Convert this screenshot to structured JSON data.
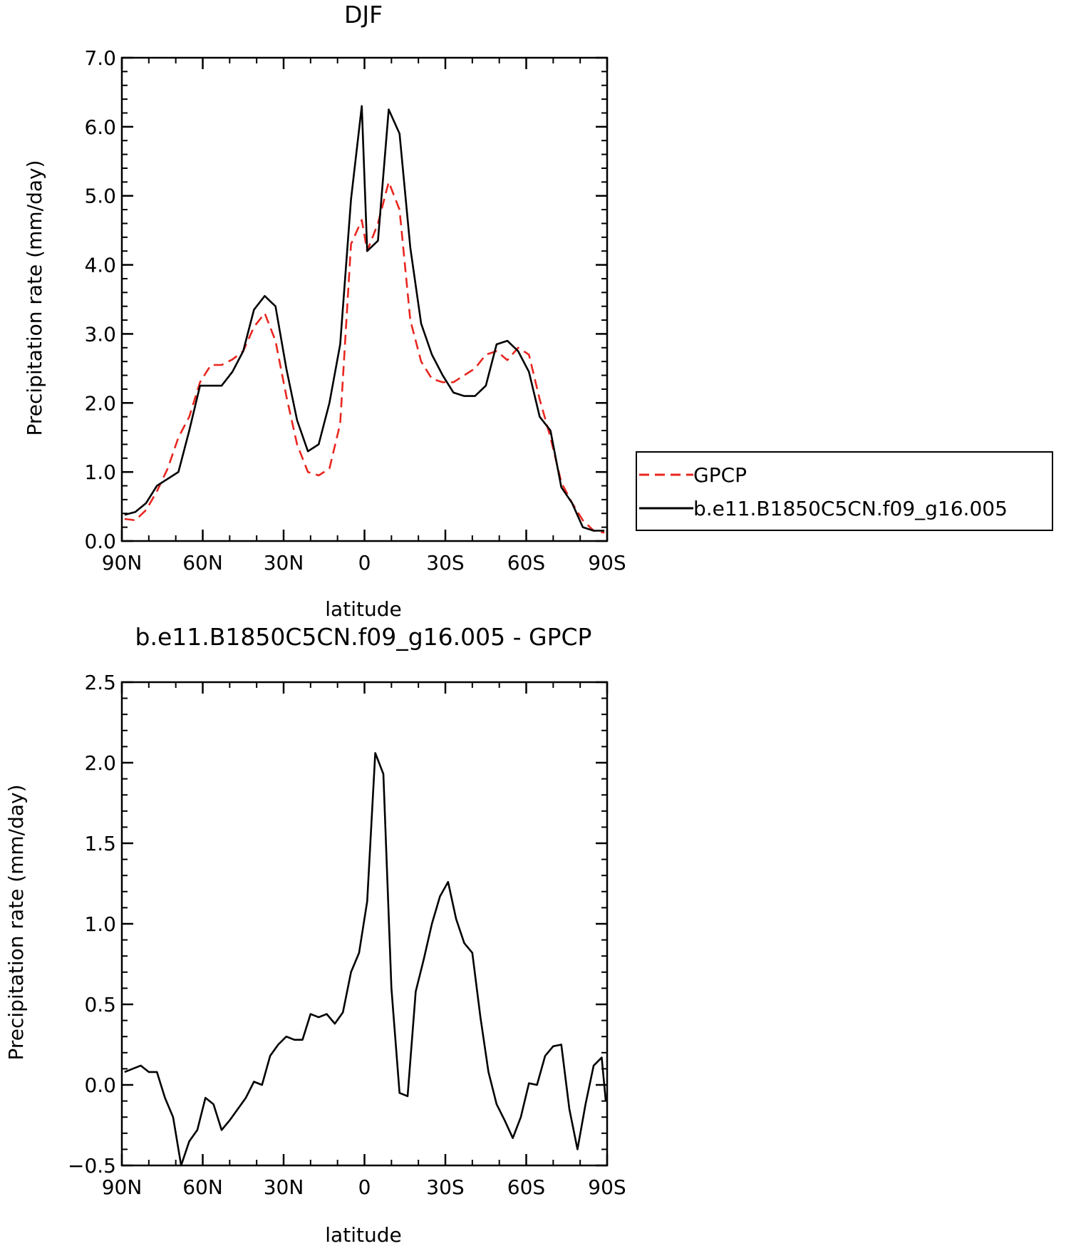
{
  "chart_data": [
    {
      "type": "line",
      "title": "DJF",
      "xlabel": "latitude",
      "ylabel": "Precipitation rate (mm/day)",
      "xlim": [
        90,
        -90
      ],
      "ylim": [
        0.0,
        7.0
      ],
      "x_ticks": [
        90,
        60,
        30,
        0,
        -30,
        -60,
        -90
      ],
      "x_tick_labels": [
        "90N",
        "60N",
        "30N",
        "0",
        "30S",
        "60S",
        "90S"
      ],
      "y_ticks": [
        0.0,
        1.0,
        2.0,
        3.0,
        4.0,
        5.0,
        6.0,
        7.0
      ],
      "y_tick_labels": [
        "0.0",
        "1.0",
        "2.0",
        "3.0",
        "4.0",
        "5.0",
        "6.0",
        "7.0"
      ],
      "grid": false,
      "legend_position": "right",
      "x": [
        89,
        85,
        81,
        77,
        73,
        69,
        65,
        61,
        57,
        53,
        49,
        45,
        41,
        37,
        33,
        29,
        25,
        21,
        17,
        13,
        9,
        5,
        1,
        -1,
        -5,
        -9,
        -13,
        -17,
        -21,
        -25,
        -29,
        -33,
        -37,
        -41,
        -45,
        -49,
        -53,
        -57,
        -61,
        -65,
        -69,
        -73,
        -77,
        -81,
        -85,
        -89
      ],
      "series": [
        {
          "name": "GPCP",
          "color": "#e8261f",
          "dash": true,
          "values": [
            0.32,
            0.3,
            0.45,
            0.72,
            1.05,
            1.5,
            1.8,
            2.3,
            2.55,
            2.55,
            2.63,
            2.75,
            3.1,
            3.3,
            2.9,
            2.1,
            1.4,
            1.0,
            0.95,
            1.05,
            1.7,
            4.3,
            4.65,
            4.2,
            4.6,
            5.2,
            4.8,
            3.2,
            2.6,
            2.35,
            2.3,
            2.3,
            2.4,
            2.5,
            2.7,
            2.75,
            2.62,
            2.8,
            2.7,
            2.05,
            1.5,
            0.85,
            0.55,
            0.3,
            0.15,
            0.12
          ]
        },
        {
          "name": "b.e11.B1850C5CN.f09_g16.005",
          "color": "#000000",
          "dash": false,
          "values": [
            0.38,
            0.42,
            0.55,
            0.8,
            0.9,
            1.0,
            1.6,
            2.25,
            2.25,
            2.25,
            2.45,
            2.75,
            3.35,
            3.55,
            3.4,
            2.5,
            1.75,
            1.3,
            1.4,
            2.0,
            2.85,
            4.95,
            6.3,
            4.2,
            4.35,
            6.25,
            5.9,
            4.25,
            3.15,
            2.7,
            2.4,
            2.15,
            2.1,
            2.1,
            2.25,
            2.85,
            2.9,
            2.75,
            2.45,
            1.8,
            1.6,
            0.78,
            0.55,
            0.2,
            0.15,
            0.15
          ]
        }
      ],
      "legend": [
        {
          "name": "GPCP",
          "color": "#e8261f",
          "dash": true
        },
        {
          "name": "b.e11.B1850C5CN.f09_g16.005",
          "color": "#000000",
          "dash": false
        }
      ]
    },
    {
      "type": "line",
      "title": "b.e11.B1850C5CN.f09_g16.005 - GPCP",
      "xlabel": "latitude",
      "ylabel": "Precipitation rate (mm/day)",
      "xlim": [
        90,
        -90
      ],
      "ylim": [
        -0.5,
        2.5
      ],
      "x_ticks": [
        90,
        60,
        30,
        0,
        -30,
        -60,
        -90
      ],
      "x_tick_labels": [
        "90N",
        "60N",
        "30N",
        "0",
        "30S",
        "60S",
        "90S"
      ],
      "y_ticks": [
        -0.5,
        0.0,
        0.5,
        1.0,
        1.5,
        2.0,
        2.5
      ],
      "y_tick_labels": [
        "−0.5",
        "0.0",
        "0.5",
        "1.0",
        "1.5",
        "2.0",
        "2.5"
      ],
      "grid": false,
      "x": [
        89,
        86,
        83,
        80,
        77,
        74,
        71,
        68,
        65,
        62,
        59,
        56,
        53,
        50,
        47,
        44,
        41,
        38,
        35,
        32,
        29,
        26,
        23,
        20,
        17,
        14,
        11,
        8,
        5,
        2,
        -1,
        -4,
        -7,
        -10,
        -13,
        -16,
        -19,
        -22,
        -25,
        -28,
        -31,
        -34,
        -37,
        -40,
        -43,
        -46,
        -49,
        -52,
        -55,
        -58,
        -61,
        -64,
        -67,
        -70,
        -73,
        -76,
        -79,
        -82,
        -85,
        -88,
        -89.5
      ],
      "series": [
        {
          "name": "",
          "color": "#000000",
          "dash": false,
          "values": [
            0.08,
            0.1,
            0.12,
            0.08,
            0.08,
            -0.08,
            -0.2,
            -0.5,
            -0.35,
            -0.28,
            -0.08,
            -0.12,
            -0.28,
            -0.22,
            -0.15,
            -0.08,
            0.02,
            0.0,
            0.18,
            0.25,
            0.3,
            0.28,
            0.28,
            0.44,
            0.42,
            0.44,
            0.38,
            0.45,
            0.7,
            0.82,
            1.14,
            2.06,
            1.93,
            0.6,
            -0.05,
            -0.07,
            0.58,
            0.78,
            1.0,
            1.17,
            1.26,
            1.03,
            0.88,
            0.82,
            0.42,
            0.08,
            -0.12,
            -0.22,
            -0.33,
            -0.2,
            0.01,
            0.0,
            0.18,
            0.24,
            0.25,
            -0.15,
            -0.4,
            -0.12,
            0.12,
            0.17,
            -0.1
          ]
        }
      ]
    }
  ]
}
